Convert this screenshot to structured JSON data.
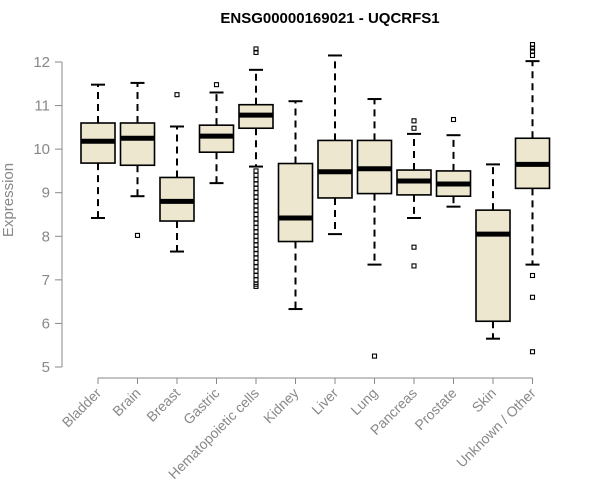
{
  "chart_data": {
    "type": "boxplot",
    "title": "ENSG00000169021 - UQCRFS1",
    "xlabel": "",
    "ylabel": "Expression",
    "ylim": [
      5,
      12.3
    ],
    "yticks": [
      5,
      6,
      7,
      8,
      9,
      10,
      11,
      12
    ],
    "box_color": "#ede7cf",
    "categories": [
      "Bladder",
      "Brain",
      "Breast",
      "Gastric",
      "Hematopoietic cells",
      "Kidney",
      "Liver",
      "Lung",
      "Pancreas",
      "Prostate",
      "Skin",
      "Unknown / Other"
    ],
    "boxes": [
      {
        "name": "Bladder",
        "whisker_low": 8.42,
        "q1": 9.68,
        "median": 10.18,
        "q3": 10.6,
        "whisker_high": 11.48,
        "outliers": []
      },
      {
        "name": "Brain",
        "whisker_low": 8.92,
        "q1": 9.63,
        "median": 10.25,
        "q3": 10.6,
        "whisker_high": 11.52,
        "outliers": [
          8.02
        ]
      },
      {
        "name": "Breast",
        "whisker_low": 7.65,
        "q1": 8.35,
        "median": 8.8,
        "q3": 9.35,
        "whisker_high": 10.52,
        "outliers": [
          11.25
        ]
      },
      {
        "name": "Gastric",
        "whisker_low": 9.22,
        "q1": 9.93,
        "median": 10.3,
        "q3": 10.55,
        "whisker_high": 11.3,
        "outliers": [
          11.48
        ]
      },
      {
        "name": "Hematopoietic cells",
        "whisker_low": 9.6,
        "q1": 10.48,
        "median": 10.78,
        "q3": 11.02,
        "whisker_high": 11.82,
        "outliers": [
          12.22,
          12.3,
          9.5,
          9.4,
          9.3,
          9.2,
          9.1,
          9.0,
          8.9,
          8.8,
          8.7,
          8.6,
          8.5,
          8.4,
          8.3,
          8.2,
          8.1,
          8.0,
          7.9,
          7.8,
          7.7,
          7.6,
          7.5,
          7.4,
          7.3,
          7.2,
          7.1,
          7.0,
          6.9,
          6.85
        ]
      },
      {
        "name": "Kidney",
        "whisker_low": 6.33,
        "q1": 7.88,
        "median": 8.42,
        "q3": 9.67,
        "whisker_high": 11.1,
        "outliers": []
      },
      {
        "name": "Liver",
        "whisker_low": 8.05,
        "q1": 8.88,
        "median": 9.48,
        "q3": 10.2,
        "whisker_high": 12.15,
        "outliers": []
      },
      {
        "name": "Lung",
        "whisker_low": 7.35,
        "q1": 8.98,
        "median": 9.55,
        "q3": 10.2,
        "whisker_high": 11.15,
        "outliers": [
          5.25
        ]
      },
      {
        "name": "Pancreas",
        "whisker_low": 8.42,
        "q1": 8.95,
        "median": 9.27,
        "q3": 9.52,
        "whisker_high": 10.35,
        "outliers": [
          10.48,
          10.65,
          7.75,
          7.32
        ]
      },
      {
        "name": "Prostate",
        "whisker_low": 8.68,
        "q1": 8.92,
        "median": 9.2,
        "q3": 9.5,
        "whisker_high": 10.32,
        "outliers": [
          10.68
        ]
      },
      {
        "name": "Skin",
        "whisker_low": 5.65,
        "q1": 6.05,
        "median": 8.05,
        "q3": 8.6,
        "whisker_high": 9.65,
        "outliers": []
      },
      {
        "name": "Unknown / Other",
        "whisker_low": 7.35,
        "q1": 9.1,
        "median": 9.65,
        "q3": 10.25,
        "whisker_high": 12.02,
        "outliers": [
          12.15,
          12.25,
          12.32,
          12.4,
          7.1,
          6.6,
          5.35
        ]
      }
    ]
  }
}
